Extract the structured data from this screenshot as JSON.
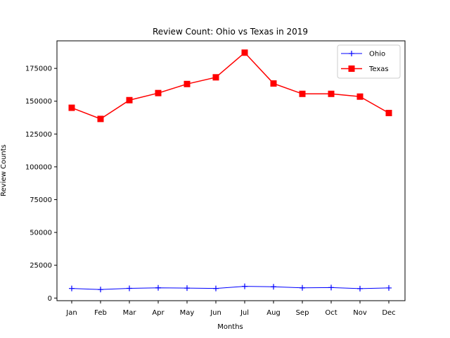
{
  "chart_data": {
    "type": "line",
    "title": "Review Count: Ohio vs Texas in 2019",
    "xlabel": "Months",
    "ylabel": "Review Counts",
    "categories": [
      "Jan",
      "Feb",
      "Mar",
      "Apr",
      "May",
      "Jun",
      "Jul",
      "Aug",
      "Sep",
      "Oct",
      "Nov",
      "Dec"
    ],
    "ylim": [
      -2000,
      196000
    ],
    "yticks": [
      0,
      25000,
      50000,
      75000,
      100000,
      125000,
      150000,
      175000
    ],
    "ytick_labels": [
      "0",
      "25000",
      "50000",
      "75000",
      "100000",
      "125000",
      "150000",
      "175000"
    ],
    "grid": false,
    "legend_position": "top-right",
    "series": [
      {
        "name": "Ohio",
        "color": "#0000ff",
        "marker": "plus",
        "values": [
          7300,
          6500,
          7400,
          7800,
          7600,
          7300,
          8900,
          8600,
          7800,
          8000,
          7200,
          7700
        ]
      },
      {
        "name": "Texas",
        "color": "#ff0000",
        "marker": "square",
        "values": [
          145000,
          136500,
          150800,
          156200,
          163100,
          168200,
          187000,
          163500,
          155600,
          155600,
          153500,
          141000
        ]
      }
    ]
  }
}
